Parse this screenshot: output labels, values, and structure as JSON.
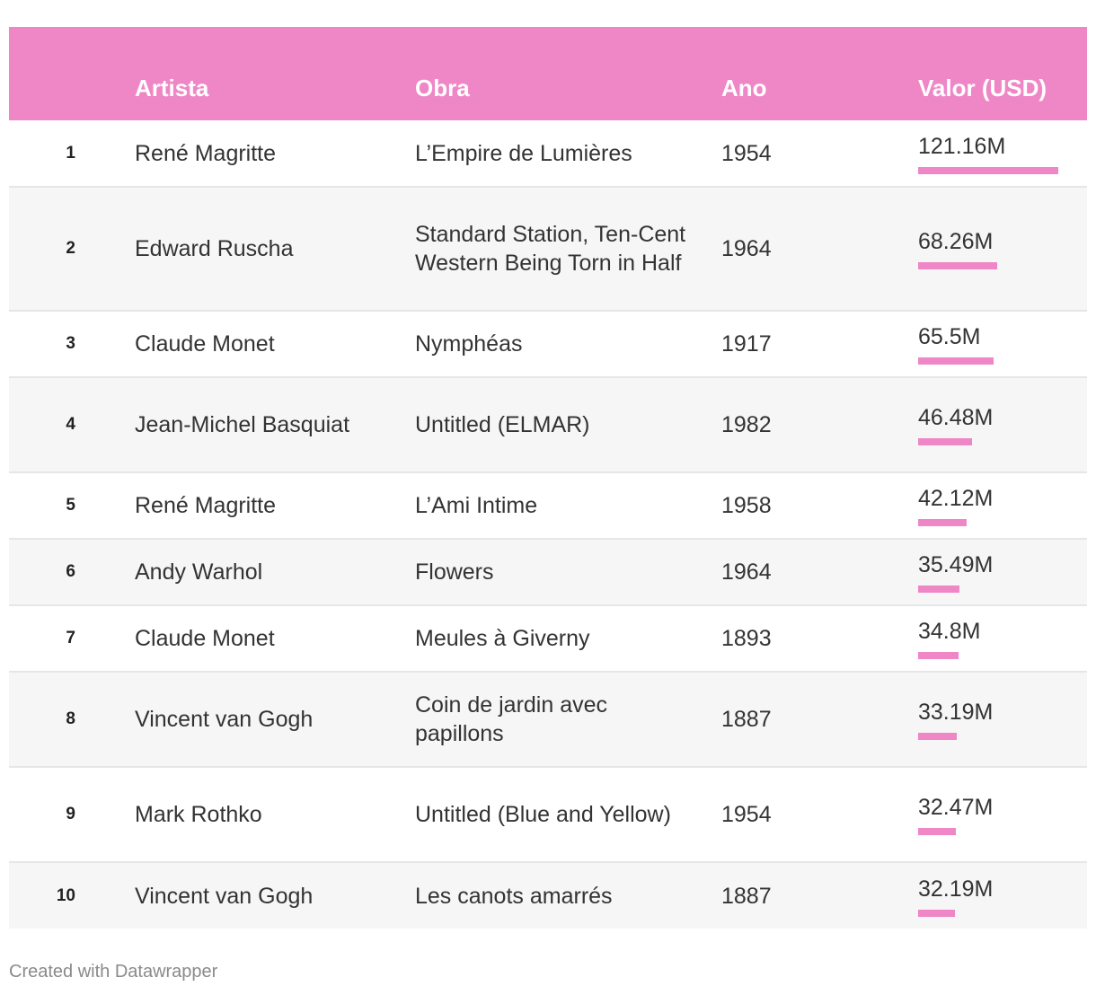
{
  "colors": {
    "header_bg": "#ef87c6",
    "bar": "#ef87c6",
    "stripe": "#f6f6f6",
    "row_border": "#e6e6e6"
  },
  "chart_data": {
    "type": "table",
    "columns": [
      "",
      "Artista",
      "Obra",
      "Ano",
      "Valor (USD)"
    ],
    "value_column_bars": true,
    "bar_max": 121.16,
    "rows": [
      {
        "rank": "1",
        "artist": "René Magritte",
        "work": "L’Empire de Lumières",
        "year": "1954",
        "value_label": "121.16M",
        "value": 121.16
      },
      {
        "rank": "2",
        "artist": "Edward Ruscha",
        "work": "Standard Station, Ten-Cent Western Being Torn in Half",
        "year": "1964",
        "value_label": "68.26M",
        "value": 68.26
      },
      {
        "rank": "3",
        "artist": "Claude Monet",
        "work": "Nymphéas",
        "year": "1917",
        "value_label": "65.5M",
        "value": 65.5
      },
      {
        "rank": "4",
        "artist": "Jean-Michel Basquiat",
        "work": "Untitled (ELMAR)",
        "year": "1982",
        "value_label": "46.48M",
        "value": 46.48
      },
      {
        "rank": "5",
        "artist": "René Magritte",
        "work": "L’Ami Intime",
        "year": "1958",
        "value_label": "42.12M",
        "value": 42.12
      },
      {
        "rank": "6",
        "artist": "Andy Warhol",
        "work": "Flowers",
        "year": "1964",
        "value_label": "35.49M",
        "value": 35.49
      },
      {
        "rank": "7",
        "artist": "Claude Monet",
        "work": "Meules à Giverny",
        "year": "1893",
        "value_label": "34.8M",
        "value": 34.8
      },
      {
        "rank": "8",
        "artist": "Vincent van Gogh",
        "work": "Coin de jardin avec papillons",
        "year": "1887",
        "value_label": "33.19M",
        "value": 33.19
      },
      {
        "rank": "9",
        "artist": "Mark Rothko",
        "work": "Untitled (Blue and Yellow)",
        "year": "1954",
        "value_label": "32.47M",
        "value": 32.47
      },
      {
        "rank": "10",
        "artist": "Vincent van Gogh",
        "work": "Les canots amarrés",
        "year": "1887",
        "value_label": "32.19M",
        "value": 32.19
      }
    ]
  },
  "footer": {
    "credit": "Created with Datawrapper"
  }
}
